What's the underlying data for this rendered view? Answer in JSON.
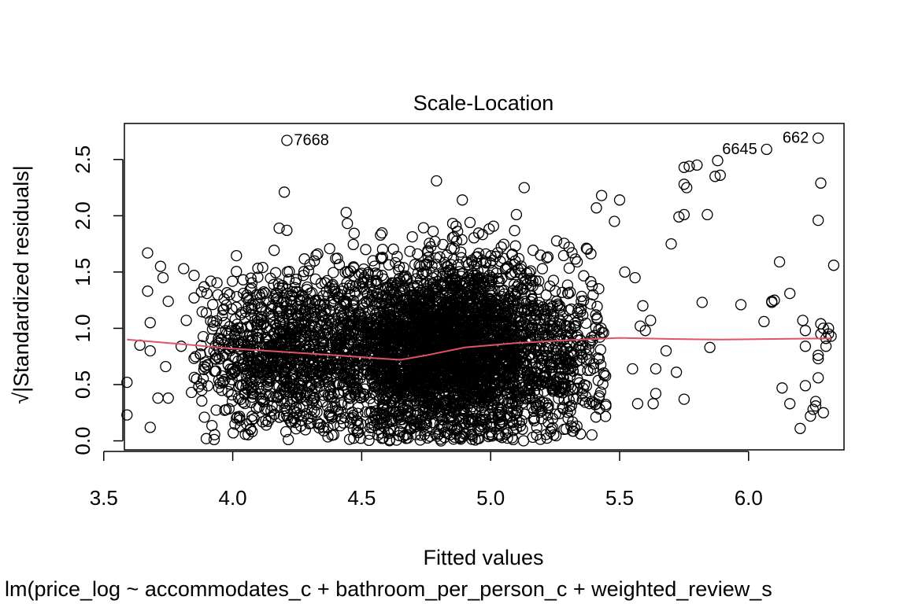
{
  "chart_data": {
    "type": "scatter",
    "title": "Scale-Location",
    "xlabel": "Fitted values",
    "ylabel": "√|Standardized residuals|",
    "subtitle": "lm(price_log ~ accommodates_c + bathroom_per_person_c + weighted_review_s",
    "xlim": [
      3.58,
      6.37
    ],
    "ylim": [
      -0.08,
      2.82
    ],
    "xticks": [
      "3.5",
      "4.0",
      "4.5",
      "5.0",
      "5.5",
      "6.0"
    ],
    "yticks": [
      "0.0",
      "0.5",
      "1.0",
      "1.5",
      "2.0",
      "2.5"
    ],
    "grid": false,
    "legend": "none",
    "colors": {
      "points": "#000000",
      "smooth": "#DF536B",
      "frame": "#000000"
    },
    "labeled_points": [
      {
        "label": "7668",
        "x": 4.21,
        "y": 2.67
      },
      {
        "label": "6645",
        "x": 6.07,
        "y": 2.59
      },
      {
        "label": "662",
        "x": 6.27,
        "y": 2.69
      }
    ],
    "sparse_points": [
      [
        3.59,
        0.52
      ],
      [
        3.59,
        0.23
      ],
      [
        3.64,
        0.85
      ],
      [
        3.67,
        1.67
      ],
      [
        3.67,
        1.33
      ],
      [
        3.68,
        0.8
      ],
      [
        3.68,
        1.05
      ],
      [
        3.68,
        0.12
      ],
      [
        3.71,
        0.38
      ],
      [
        3.72,
        1.55
      ],
      [
        3.73,
        1.45
      ],
      [
        3.74,
        0.66
      ],
      [
        3.75,
        1.24
      ],
      [
        3.75,
        0.38
      ],
      [
        3.8,
        0.84
      ],
      [
        3.81,
        1.53
      ],
      [
        3.82,
        1.07
      ],
      [
        3.84,
        0.43
      ],
      [
        3.85,
        1.27
      ],
      [
        3.85,
        1.47
      ],
      [
        3.86,
        0.55
      ],
      [
        3.88,
        0.45
      ],
      [
        3.89,
        0.21
      ],
      [
        3.9,
        1.31
      ],
      [
        4.2,
        2.21
      ],
      [
        4.21,
        1.87
      ],
      [
        4.18,
        1.89
      ],
      [
        4.44,
        2.03
      ],
      [
        4.79,
        2.31
      ],
      [
        4.89,
        2.14
      ],
      [
        4.92,
        1.94
      ],
      [
        5.13,
        2.25
      ],
      [
        5.1,
        2.01
      ],
      [
        5.41,
        2.07
      ],
      [
        5.43,
        2.18
      ],
      [
        5.48,
        1.95
      ],
      [
        5.5,
        2.14
      ],
      [
        5.52,
        1.5
      ],
      [
        5.56,
        1.45
      ],
      [
        5.59,
        1.2
      ],
      [
        5.62,
        1.07
      ],
      [
        5.68,
        0.8
      ],
      [
        5.7,
        1.75
      ],
      [
        5.72,
        0.61
      ],
      [
        5.73,
        1.99
      ],
      [
        5.75,
        2.01
      ],
      [
        5.75,
        2.28
      ],
      [
        5.76,
        2.25
      ],
      [
        5.75,
        2.43
      ],
      [
        5.77,
        2.44
      ],
      [
        5.8,
        2.45
      ],
      [
        5.75,
        0.37
      ],
      [
        5.82,
        1.23
      ],
      [
        5.84,
        2.01
      ],
      [
        5.85,
        0.83
      ],
      [
        5.87,
        2.35
      ],
      [
        5.88,
        2.49
      ],
      [
        5.89,
        2.36
      ],
      [
        5.97,
        1.21
      ],
      [
        6.06,
        1.06
      ],
      [
        6.09,
        1.23
      ],
      [
        6.1,
        1.25
      ],
      [
        6.09,
        1.24
      ],
      [
        6.12,
        1.59
      ],
      [
        6.13,
        0.47
      ],
      [
        6.16,
        1.31
      ],
      [
        6.16,
        0.33
      ],
      [
        6.2,
        0.11
      ],
      [
        6.21,
        1.07
      ],
      [
        6.22,
        0.49
      ],
      [
        6.22,
        0.98
      ],
      [
        6.22,
        0.84
      ],
      [
        6.24,
        0.22
      ],
      [
        6.25,
        0.28
      ],
      [
        6.26,
        0.31
      ],
      [
        6.26,
        0.35
      ],
      [
        6.27,
        0.76
      ],
      [
        6.27,
        0.73
      ],
      [
        6.27,
        1.96
      ],
      [
        6.27,
        0.56
      ],
      [
        6.28,
        2.29
      ],
      [
        6.28,
        1.04
      ],
      [
        6.28,
        0.95
      ],
      [
        6.29,
        1.0
      ],
      [
        6.29,
        0.25
      ],
      [
        6.3,
        0.84
      ],
      [
        6.3,
        0.91
      ],
      [
        6.31,
        0.95
      ],
      [
        6.31,
        1.0
      ],
      [
        6.32,
        0.93
      ],
      [
        6.33,
        1.56
      ],
      [
        5.63,
        0.33
      ],
      [
        5.64,
        0.64
      ],
      [
        5.64,
        0.42
      ],
      [
        5.6,
        0.98
      ],
      [
        5.57,
        0.33
      ],
      [
        5.55,
        0.64
      ],
      [
        5.58,
        1.02
      ]
    ],
    "clusters": [
      {
        "cx": 4.18,
        "cy": 0.78,
        "sx": 0.16,
        "sy": 0.36,
        "n": 900
      },
      {
        "cx": 4.72,
        "cy": 0.8,
        "sx": 0.22,
        "sy": 0.38,
        "n": 1800
      },
      {
        "cx": 4.92,
        "cy": 0.82,
        "sx": 0.2,
        "sy": 0.4,
        "n": 1700
      },
      {
        "cx": 5.3,
        "cy": 0.75,
        "sx": 0.14,
        "sy": 0.38,
        "n": 260
      }
    ],
    "smooth_line": {
      "x": [
        3.59,
        3.8,
        4.0,
        4.2,
        4.4,
        4.55,
        4.65,
        4.75,
        4.9,
        5.1,
        5.3,
        5.5,
        5.7,
        5.9,
        6.1,
        6.32
      ],
      "y": [
        0.9,
        0.86,
        0.82,
        0.79,
        0.76,
        0.735,
        0.72,
        0.76,
        0.83,
        0.87,
        0.895,
        0.915,
        0.905,
        0.9,
        0.905,
        0.91
      ]
    }
  }
}
